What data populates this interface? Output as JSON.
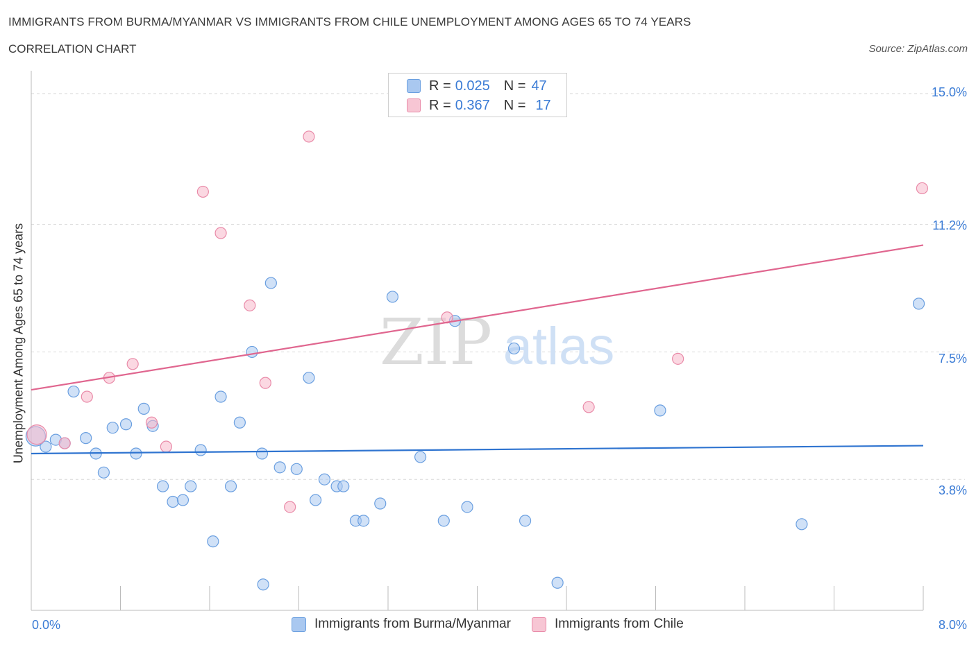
{
  "header": {
    "title": "IMMIGRANTS FROM BURMA/MYANMAR VS IMMIGRANTS FROM CHILE UNEMPLOYMENT AMONG AGES 65 TO 74 YEARS",
    "subtitle": "CORRELATION CHART",
    "source": "Source: ZipAtlas.com"
  },
  "legend": {
    "rows": [
      {
        "r_label": "R = ",
        "r_value": "0.025",
        "n_label": "N = ",
        "n_value": "47"
      },
      {
        "r_label": "R = ",
        "r_value": "0.367",
        "n_label": "N = ",
        "n_value": "17"
      }
    ]
  },
  "watermark": {
    "zip": "ZIP",
    "atlas": "atlas"
  },
  "colors": {
    "blue_fill": "#a9c8f0",
    "blue_stroke": "#6a9fe0",
    "blue_line": "#2f74d0",
    "pink_fill": "#f7b8cb",
    "pink_stroke": "#e98aa8",
    "pink_line": "#e0668f",
    "tick_text": "#3a7bd5",
    "grid": "#d9d9d9"
  },
  "chart_data": {
    "type": "scatter",
    "title": "IMMIGRANTS FROM BURMA/MYANMAR VS IMMIGRANTS FROM CHILE UNEMPLOYMENT AMONG AGES 65 TO 74 YEARS",
    "ylabel": "Unemployment Among Ages 65 to 74 years",
    "xlabel": "",
    "xlim": [
      0.0,
      8.0
    ],
    "ylim": [
      0.0,
      15.5
    ],
    "x_tick_labels": [
      "0.0%",
      "8.0%"
    ],
    "y_ticks": [
      3.8,
      7.5,
      11.2,
      15.0
    ],
    "y_tick_labels": [
      "3.8%",
      "7.5%",
      "11.2%",
      "15.0%"
    ],
    "grid": true,
    "legend_position": "bottom",
    "series": [
      {
        "name": "Immigrants from Burma/Myanmar",
        "color": "blue",
        "trend": [
          [
            0.0,
            4.55
          ],
          [
            8.0,
            4.78
          ]
        ],
        "points": [
          [
            0.04,
            5.05
          ],
          [
            0.13,
            4.75
          ],
          [
            0.22,
            4.95
          ],
          [
            0.3,
            4.85
          ],
          [
            0.38,
            6.35
          ],
          [
            0.49,
            5.0
          ],
          [
            0.58,
            4.55
          ],
          [
            0.65,
            4.0
          ],
          [
            0.73,
            5.3
          ],
          [
            0.85,
            5.4
          ],
          [
            0.94,
            4.55
          ],
          [
            1.01,
            5.85
          ],
          [
            1.09,
            5.35
          ],
          [
            1.18,
            3.6
          ],
          [
            1.27,
            3.15
          ],
          [
            1.36,
            3.2
          ],
          [
            1.43,
            3.6
          ],
          [
            1.52,
            4.65
          ],
          [
            1.63,
            2.0
          ],
          [
            1.7,
            6.2
          ],
          [
            1.79,
            3.6
          ],
          [
            1.87,
            5.45
          ],
          [
            1.98,
            7.5
          ],
          [
            2.07,
            4.55
          ],
          [
            2.15,
            9.5
          ],
          [
            2.23,
            4.15
          ],
          [
            2.38,
            4.1
          ],
          [
            2.49,
            6.75
          ],
          [
            2.55,
            3.2
          ],
          [
            2.63,
            3.8
          ],
          [
            2.74,
            3.6
          ],
          [
            2.8,
            3.6
          ],
          [
            2.91,
            2.6
          ],
          [
            2.98,
            2.6
          ],
          [
            3.13,
            3.1
          ],
          [
            3.24,
            9.1
          ],
          [
            3.49,
            4.45
          ],
          [
            3.7,
            2.6
          ],
          [
            3.8,
            8.4
          ],
          [
            3.91,
            3.0
          ],
          [
            4.33,
            7.6
          ],
          [
            4.43,
            2.6
          ],
          [
            4.72,
            0.8
          ],
          [
            5.64,
            5.8
          ],
          [
            6.91,
            2.5
          ],
          [
            7.96,
            8.9
          ],
          [
            2.08,
            0.75
          ]
        ]
      },
      {
        "name": "Immigrants from Chile",
        "color": "pink",
        "trend": [
          [
            0.0,
            6.4
          ],
          [
            8.0,
            10.6
          ]
        ],
        "points": [
          [
            0.05,
            5.1
          ],
          [
            0.3,
            4.85
          ],
          [
            0.5,
            6.2
          ],
          [
            0.7,
            6.75
          ],
          [
            0.91,
            7.15
          ],
          [
            1.08,
            5.45
          ],
          [
            1.21,
            4.75
          ],
          [
            1.54,
            12.15
          ],
          [
            1.7,
            10.95
          ],
          [
            1.96,
            8.85
          ],
          [
            2.1,
            6.6
          ],
          [
            2.32,
            3.0
          ],
          [
            2.49,
            13.75
          ],
          [
            3.73,
            8.5
          ],
          [
            5.0,
            5.9
          ],
          [
            5.8,
            7.3
          ],
          [
            7.99,
            12.25
          ]
        ]
      }
    ]
  }
}
